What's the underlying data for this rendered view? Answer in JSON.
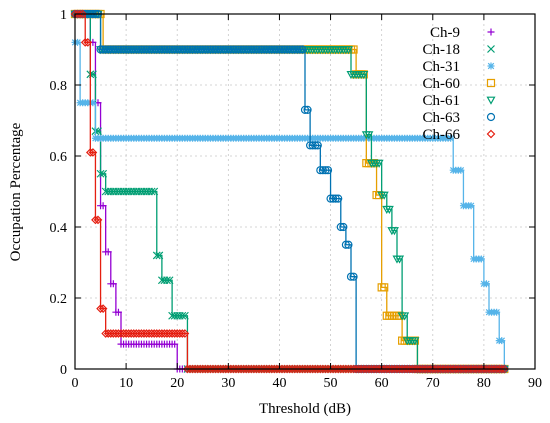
{
  "chart_data": {
    "type": "line",
    "xlabel": "Threshold (dB)",
    "ylabel": "Occupation Percentage",
    "xlim": [
      0,
      90
    ],
    "ylim": [
      0,
      1
    ],
    "xticks": [
      "0",
      "10",
      "20",
      "30",
      "40",
      "50",
      "60",
      "70",
      "80",
      "90"
    ],
    "yticks": [
      "0",
      "0.2",
      "0.4",
      "0.6",
      "0.8",
      "1"
    ],
    "grid": true,
    "legend_position": "top-right",
    "series": [
      {
        "name": "Ch-9",
        "color": "#9400d3",
        "marker": "plus",
        "x": [
          0,
          1,
          2,
          3,
          4,
          5,
          6,
          7,
          8,
          9,
          10,
          11,
          12,
          13,
          14,
          15,
          16,
          17,
          18,
          19,
          20,
          21,
          25,
          30,
          35,
          40,
          45,
          50,
          55,
          60,
          65,
          70,
          75,
          80,
          84
        ],
        "y": [
          1,
          1,
          1,
          0.92,
          0.75,
          0.46,
          0.33,
          0.24,
          0.16,
          0.07,
          0.07,
          0.07,
          0.07,
          0.07,
          0.07,
          0.07,
          0.07,
          0.07,
          0.07,
          0.07,
          0,
          0,
          0,
          0,
          0,
          0,
          0,
          0,
          0,
          0,
          0,
          0,
          0,
          0,
          0
        ]
      },
      {
        "name": "Ch-18",
        "color": "#009e73",
        "marker": "x",
        "x": [
          0,
          1,
          2,
          3,
          4,
          5,
          6,
          7,
          8,
          9,
          10,
          11,
          12,
          13,
          14,
          15,
          16,
          17,
          18,
          19,
          20,
          21,
          22,
          25,
          30,
          35,
          40,
          45,
          50,
          55,
          60,
          65,
          70,
          75,
          80,
          84
        ],
        "y": [
          1,
          1,
          1,
          0.83,
          0.67,
          0.55,
          0.5,
          0.5,
          0.5,
          0.5,
          0.5,
          0.5,
          0.5,
          0.5,
          0.5,
          0.5,
          0.32,
          0.25,
          0.25,
          0.15,
          0.15,
          0.15,
          0,
          0,
          0,
          0,
          0,
          0,
          0,
          0,
          0,
          0,
          0,
          0,
          0,
          0
        ]
      },
      {
        "name": "Ch-31",
        "color": "#56b4e9",
        "marker": "star",
        "x": [
          0,
          1,
          2,
          3,
          4,
          5,
          10,
          20,
          30,
          40,
          50,
          60,
          70,
          73,
          74,
          75,
          76,
          77,
          78,
          79,
          80,
          81,
          82,
          83,
          84
        ],
        "y": [
          0.92,
          0.75,
          0.75,
          0.75,
          0.65,
          0.65,
          0.65,
          0.65,
          0.65,
          0.65,
          0.65,
          0.65,
          0.65,
          0.65,
          0.56,
          0.56,
          0.46,
          0.46,
          0.31,
          0.31,
          0.24,
          0.16,
          0.16,
          0.08,
          0
        ]
      },
      {
        "name": "Ch-60",
        "color": "#e69f00",
        "marker": "square",
        "x": [
          0,
          1,
          2,
          3,
          4,
          5,
          5.5,
          10,
          20,
          30,
          40,
          50,
          54,
          55,
          56,
          57,
          58,
          59,
          60,
          61,
          62,
          63,
          64,
          65,
          66,
          67,
          70,
          75,
          80,
          84
        ],
        "y": [
          1,
          1,
          1,
          1,
          1,
          1,
          0.9,
          0.9,
          0.9,
          0.9,
          0.9,
          0.9,
          0.9,
          0.83,
          0.83,
          0.58,
          0.58,
          0.49,
          0.23,
          0.15,
          0.15,
          0.15,
          0.08,
          0.08,
          0.08,
          0,
          0,
          0,
          0,
          0
        ]
      },
      {
        "name": "Ch-61",
        "color": "#009e73",
        "marker": "triangle-down",
        "x": [
          0,
          1,
          2,
          3,
          4,
          5,
          5.5,
          10,
          20,
          30,
          40,
          50,
          53,
          54,
          55,
          56,
          57,
          58,
          59,
          60,
          61,
          62,
          63,
          64,
          65,
          66,
          67,
          70,
          75,
          80,
          84
        ],
        "y": [
          1,
          1,
          1,
          1,
          1,
          0.9,
          0.9,
          0.9,
          0.9,
          0.9,
          0.9,
          0.9,
          0.9,
          0.83,
          0.83,
          0.83,
          0.66,
          0.58,
          0.58,
          0.49,
          0.45,
          0.39,
          0.31,
          0.15,
          0.08,
          0.08,
          0,
          0,
          0,
          0,
          0
        ]
      },
      {
        "name": "Ch-63",
        "color": "#0072b2",
        "marker": "circle",
        "x": [
          0,
          1,
          2,
          3,
          4,
          5,
          10,
          20,
          30,
          40,
          44,
          45,
          46,
          47,
          48,
          49,
          50,
          51,
          52,
          53,
          54,
          55,
          56,
          60,
          65,
          70,
          75,
          80,
          84
        ],
        "y": [
          1,
          1,
          1,
          1,
          1,
          0.9,
          0.9,
          0.9,
          0.9,
          0.9,
          0.9,
          0.73,
          0.63,
          0.63,
          0.56,
          0.56,
          0.48,
          0.48,
          0.4,
          0.35,
          0.26,
          0,
          0,
          0,
          0,
          0,
          0,
          0,
          0
        ]
      },
      {
        "name": "Ch-66",
        "color": "#e51e10",
        "marker": "diamond",
        "x": [
          0,
          1,
          2,
          3,
          4,
          5,
          6,
          10,
          15,
          20,
          21,
          22,
          25,
          30,
          35,
          40,
          45,
          50,
          55,
          60,
          65,
          70,
          75,
          80,
          84
        ],
        "y": [
          1,
          1,
          0.92,
          0.61,
          0.42,
          0.17,
          0.1,
          0.1,
          0.1,
          0.1,
          0.1,
          0,
          0,
          0,
          0,
          0,
          0,
          0,
          0,
          0,
          0,
          0,
          0,
          0,
          0
        ]
      }
    ]
  }
}
